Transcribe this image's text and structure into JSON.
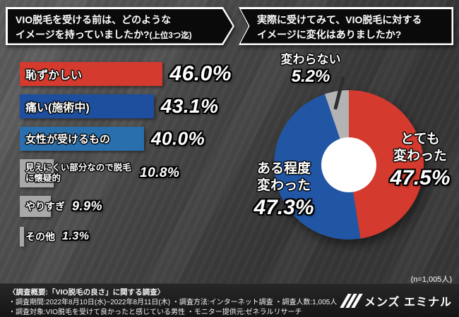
{
  "headers": {
    "left": {
      "line1": "VIO脱毛を受ける前は、どのような",
      "line2": "イメージを持っていましたか?",
      "line2_suffix": "(上位3つ迄)"
    },
    "right": {
      "line1": "実際に受けてみて、VIO脱毛に対する",
      "line2": "イメージに変化はありましたか?"
    }
  },
  "chart_data": [
    {
      "type": "bar",
      "orientation": "horizontal",
      "title": "VIO脱毛を受ける前は、どのようなイメージを持っていましたか?(上位3つ迄)",
      "categories": [
        "恥ずかしい",
        "痛い(施術中)",
        "女性が受けるもの",
        "見えにくい部分なので脱毛に懐疑的",
        "やりすぎ",
        "その他"
      ],
      "values": [
        46.0,
        43.1,
        40.0,
        10.8,
        9.9,
        1.3
      ],
      "value_labels": [
        "46.0%",
        "43.1%",
        "40.0%",
        "10.8%",
        "9.9%",
        "1.3%"
      ],
      "colors": [
        "#d43a2e",
        "#1d4f9e",
        "#2a6fad",
        "#a8a8a8",
        "#a8a8a8",
        "#a8a8a8"
      ],
      "xlim": [
        0,
        50
      ],
      "unit": "%"
    },
    {
      "type": "pie",
      "donut": true,
      "title": "実際に受けてみて、VIO脱毛に対するイメージに変化はありましたか?",
      "categories": [
        "とても変わった",
        "ある程度変わった",
        "変わらない"
      ],
      "display_labels": [
        "とても\n変わった",
        "ある程度\n変わった",
        "変わらない"
      ],
      "values": [
        47.5,
        47.3,
        5.2
      ],
      "value_labels": [
        "47.5%",
        "47.3%",
        "5.2%"
      ],
      "colors": [
        "#d43a2e",
        "#2156a5",
        "#b3b3b3"
      ],
      "start_angle_deg": 0,
      "legend_position": "on-slices",
      "note": "(n=1,005人)"
    }
  ],
  "footer": {
    "line1": "〈調査概要:「VIO脱毛の良さ」に関する調査〉",
    "line2": "・調査期間:2022年8月10日(水)~2022年8月11日(木)  ・調査方法:インターネット調査  ・調査人数:1,005人",
    "line3": "・調査対象:VIO脱毛を受けて良かったと感じている男性  ・モニター提供元:ゼネラルリサーチ",
    "logo_text": "メンズ エミナル"
  }
}
